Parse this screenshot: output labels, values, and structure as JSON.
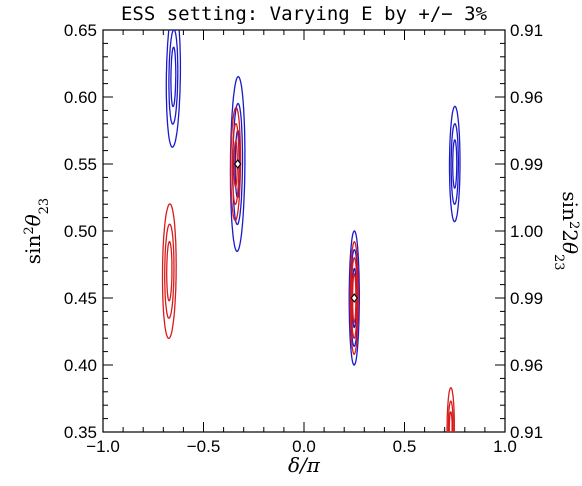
{
  "chart_data": {
    "type": "contour",
    "title": "ESS setting: Varying E by +/− 3%",
    "xlabel": {
      "base": "δ/π"
    },
    "ylabel_left": {
      "base": "sin",
      "sup": "2",
      "theta": "θ",
      "sub": "23"
    },
    "ylabel_right": {
      "base": "sin",
      "sup": "2",
      "mult": "2",
      "theta": "θ",
      "sub": "23"
    },
    "xlim": [
      -1.0,
      1.0
    ],
    "ylim": [
      0.35,
      0.65
    ],
    "x_ticks": [
      "−1.0",
      "−0.5",
      "0.0",
      "0.5",
      "1.0"
    ],
    "x_tick_values": [
      -1.0,
      -0.5,
      0.0,
      0.5,
      1.0
    ],
    "y_ticks": [
      "0.35",
      "0.40",
      "0.45",
      "0.50",
      "0.55",
      "0.60",
      "0.65"
    ],
    "y_tick_values": [
      0.35,
      0.4,
      0.45,
      0.5,
      0.55,
      0.6,
      0.65
    ],
    "y2_ticks": [
      "0.91",
      "0.96",
      "0.99",
      "1.00",
      "0.99",
      "0.96",
      "0.91"
    ],
    "grid": false,
    "colors": {
      "blue": "#1a1acc",
      "red": "#d81b1b"
    },
    "true_points": [
      {
        "x": -0.33,
        "y": 0.55
      },
      {
        "x": 0.25,
        "y": 0.45
      }
    ],
    "series": [
      {
        "color": "blue",
        "regions": [
          {
            "cx": -0.65,
            "cy": 0.615,
            "levels": [
              [
                0.012,
                0.022,
                0.2
              ],
              [
                0.022,
                0.035,
                0.2
              ],
              [
                0.035,
                0.052,
                0.2
              ]
            ]
          },
          {
            "cx": -0.33,
            "cy": 0.55,
            "levels": [
              [
                0.012,
                0.025,
                0.15
              ],
              [
                0.024,
                0.045,
                0.15
              ],
              [
                0.036,
                0.065,
                0.15
              ]
            ]
          },
          {
            "cx": 0.75,
            "cy": 0.55,
            "levels": [
              [
                0.01,
                0.018,
                0.05
              ],
              [
                0.018,
                0.03,
                0.05
              ],
              [
                0.026,
                0.043,
                0.05
              ]
            ]
          },
          {
            "cx": 0.25,
            "cy": 0.45,
            "levels": [
              [
                0.01,
                0.022,
                0.05
              ],
              [
                0.018,
                0.036,
                0.05
              ],
              [
                0.025,
                0.05,
                0.05
              ]
            ]
          }
        ]
      },
      {
        "color": "red",
        "regions": [
          {
            "cx": -0.34,
            "cy": 0.55,
            "levels": [
              [
                0.008,
                0.017,
                0.15
              ],
              [
                0.016,
                0.03,
                0.15
              ],
              [
                0.024,
                0.042,
                0.15
              ]
            ]
          },
          {
            "cx": -0.67,
            "cy": 0.47,
            "levels": [
              [
                0.013,
                0.022,
                0.12
              ],
              [
                0.023,
                0.035,
                0.12
              ],
              [
                0.034,
                0.05,
                0.12
              ]
            ]
          },
          {
            "cx": 0.25,
            "cy": 0.45,
            "levels": [
              [
                0.008,
                0.018,
                0.05
              ],
              [
                0.014,
                0.03,
                0.05
              ],
              [
                0.02,
                0.042,
                0.05
              ]
            ]
          },
          {
            "cx": 0.73,
            "cy": 0.353,
            "levels": [
              [
                0.007,
                0.012,
                0.05
              ],
              [
                0.012,
                0.02,
                0.05
              ],
              [
                0.018,
                0.03,
                0.05
              ]
            ]
          }
        ]
      }
    ]
  }
}
